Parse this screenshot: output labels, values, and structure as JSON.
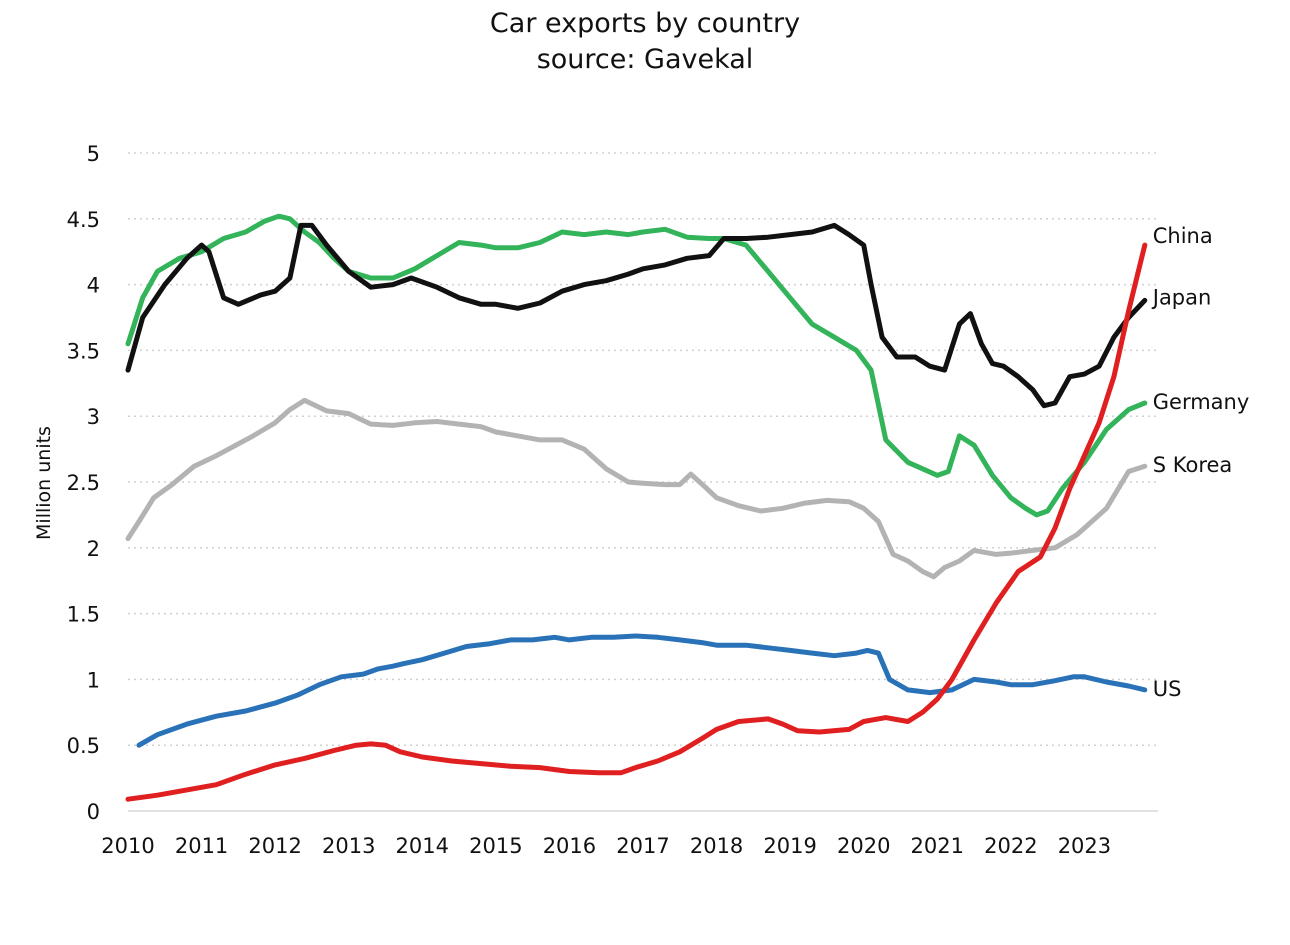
{
  "chart_data": {
    "type": "line",
    "title": "Car exports by country",
    "subtitle": "source: Gavekal",
    "xlabel": "",
    "ylabel": "Million units",
    "xlim": [
      2010,
      2024
    ],
    "ylim": [
      0,
      5
    ],
    "x_ticks": [
      "2010",
      "2011",
      "2012",
      "2013",
      "2014",
      "2015",
      "2016",
      "2017",
      "2018",
      "2019",
      "2020",
      "2021",
      "2022",
      "2023"
    ],
    "y_ticks": [
      "0",
      "0.5",
      "1",
      "1.5",
      "2",
      "2.5",
      "3",
      "3.5",
      "4",
      "4.5",
      "5"
    ],
    "y_tick_values": [
      0,
      0.5,
      1,
      1.5,
      2,
      2.5,
      3,
      3.5,
      4,
      4.5,
      5
    ],
    "grid": "horizontal dotted",
    "legend": "labels at line ends (right)",
    "series": [
      {
        "name": "China",
        "color": "#e02020",
        "x": [
          2010.0,
          2010.4,
          2010.8,
          2011.2,
          2011.6,
          2012.0,
          2012.4,
          2012.8,
          2013.1,
          2013.3,
          2013.5,
          2013.7,
          2014.0,
          2014.4,
          2014.8,
          2015.2,
          2015.6,
          2016.0,
          2016.4,
          2016.7,
          2016.9,
          2017.2,
          2017.5,
          2017.8,
          2018.0,
          2018.3,
          2018.7,
          2018.9,
          2019.1,
          2019.4,
          2019.8,
          2020.0,
          2020.3,
          2020.6,
          2020.8,
          2021.0,
          2021.2,
          2021.5,
          2021.8,
          2022.1,
          2022.4,
          2022.6,
          2022.8,
          2023.0,
          2023.2,
          2023.4,
          2023.6,
          2023.82
        ],
        "values": [
          0.09,
          0.12,
          0.16,
          0.2,
          0.28,
          0.35,
          0.4,
          0.46,
          0.5,
          0.51,
          0.5,
          0.45,
          0.41,
          0.38,
          0.36,
          0.34,
          0.33,
          0.3,
          0.29,
          0.29,
          0.33,
          0.38,
          0.45,
          0.55,
          0.62,
          0.68,
          0.7,
          0.66,
          0.61,
          0.6,
          0.62,
          0.68,
          0.71,
          0.68,
          0.75,
          0.85,
          1.0,
          1.3,
          1.58,
          1.82,
          1.93,
          2.15,
          2.45,
          2.7,
          2.95,
          3.3,
          3.8,
          4.3
        ]
      },
      {
        "name": "Japan",
        "color": "#111111",
        "x": [
          2010.0,
          2010.2,
          2010.5,
          2010.8,
          2011.0,
          2011.1,
          2011.3,
          2011.5,
          2011.8,
          2012.0,
          2012.2,
          2012.35,
          2012.5,
          2012.7,
          2013.0,
          2013.3,
          2013.6,
          2013.85,
          2014.2,
          2014.5,
          2014.8,
          2015.0,
          2015.3,
          2015.6,
          2015.9,
          2016.2,
          2016.5,
          2016.8,
          2017.0,
          2017.3,
          2017.6,
          2017.9,
          2018.1,
          2018.4,
          2018.7,
          2019.0,
          2019.3,
          2019.6,
          2019.8,
          2020.0,
          2020.1,
          2020.25,
          2020.45,
          2020.7,
          2020.9,
          2021.1,
          2021.3,
          2021.45,
          2021.6,
          2021.75,
          2021.9,
          2022.1,
          2022.3,
          2022.45,
          2022.6,
          2022.8,
          2023.0,
          2023.2,
          2023.4,
          2023.6,
          2023.82
        ],
        "values": [
          3.35,
          3.75,
          4.0,
          4.2,
          4.3,
          4.25,
          3.9,
          3.85,
          3.92,
          3.95,
          4.05,
          4.45,
          4.45,
          4.3,
          4.1,
          3.98,
          4.0,
          4.05,
          3.98,
          3.9,
          3.85,
          3.85,
          3.82,
          3.86,
          3.95,
          4.0,
          4.03,
          4.08,
          4.12,
          4.15,
          4.2,
          4.22,
          4.35,
          4.35,
          4.36,
          4.38,
          4.4,
          4.45,
          4.38,
          4.3,
          4.0,
          3.6,
          3.45,
          3.45,
          3.38,
          3.35,
          3.7,
          3.78,
          3.55,
          3.4,
          3.38,
          3.3,
          3.2,
          3.08,
          3.1,
          3.3,
          3.32,
          3.38,
          3.6,
          3.75,
          3.88
        ]
      },
      {
        "name": "Germany",
        "color": "#33b35a",
        "x": [
          2010.0,
          2010.2,
          2010.4,
          2010.7,
          2011.0,
          2011.3,
          2011.6,
          2011.85,
          2012.05,
          2012.2,
          2012.4,
          2012.6,
          2012.8,
          2013.0,
          2013.3,
          2013.6,
          2013.9,
          2014.2,
          2014.5,
          2014.8,
          2015.0,
          2015.3,
          2015.6,
          2015.9,
          2016.2,
          2016.5,
          2016.8,
          2017.0,
          2017.3,
          2017.6,
          2017.9,
          2018.1,
          2018.4,
          2018.7,
          2019.0,
          2019.3,
          2019.6,
          2019.9,
          2020.1,
          2020.3,
          2020.6,
          2020.8,
          2021.0,
          2021.15,
          2021.3,
          2021.5,
          2021.75,
          2022.0,
          2022.2,
          2022.35,
          2022.5,
          2022.7,
          2023.0,
          2023.3,
          2023.6,
          2023.82
        ],
        "values": [
          3.55,
          3.9,
          4.1,
          4.2,
          4.25,
          4.35,
          4.4,
          4.48,
          4.52,
          4.5,
          4.4,
          4.32,
          4.2,
          4.1,
          4.05,
          4.05,
          4.12,
          4.22,
          4.32,
          4.3,
          4.28,
          4.28,
          4.32,
          4.4,
          4.38,
          4.4,
          4.38,
          4.4,
          4.42,
          4.36,
          4.35,
          4.35,
          4.3,
          4.1,
          3.9,
          3.7,
          3.6,
          3.5,
          3.35,
          2.82,
          2.65,
          2.6,
          2.55,
          2.58,
          2.85,
          2.78,
          2.55,
          2.38,
          2.3,
          2.25,
          2.28,
          2.45,
          2.65,
          2.9,
          3.05,
          3.1
        ]
      },
      {
        "name": "S Korea",
        "color": "#b3b3b3",
        "x": [
          2010.0,
          2010.15,
          2010.35,
          2010.6,
          2010.9,
          2011.2,
          2011.4,
          2011.7,
          2012.0,
          2012.2,
          2012.4,
          2012.7,
          2013.0,
          2013.3,
          2013.6,
          2013.9,
          2014.2,
          2014.5,
          2014.8,
          2015.0,
          2015.3,
          2015.6,
          2015.9,
          2016.2,
          2016.5,
          2016.8,
          2017.0,
          2017.3,
          2017.5,
          2017.65,
          2017.85,
          2018.0,
          2018.3,
          2018.6,
          2018.9,
          2019.2,
          2019.5,
          2019.8,
          2020.0,
          2020.2,
          2020.4,
          2020.6,
          2020.8,
          2020.95,
          2021.1,
          2021.3,
          2021.5,
          2021.8,
          2022.0,
          2022.3,
          2022.6,
          2022.9,
          2023.1,
          2023.3,
          2023.6,
          2023.82
        ],
        "values": [
          2.07,
          2.2,
          2.38,
          2.48,
          2.62,
          2.7,
          2.76,
          2.85,
          2.95,
          3.05,
          3.12,
          3.04,
          3.02,
          2.94,
          2.93,
          2.95,
          2.96,
          2.94,
          2.92,
          2.88,
          2.85,
          2.82,
          2.82,
          2.75,
          2.6,
          2.5,
          2.49,
          2.48,
          2.48,
          2.56,
          2.46,
          2.38,
          2.32,
          2.28,
          2.3,
          2.34,
          2.36,
          2.35,
          2.3,
          2.2,
          1.95,
          1.9,
          1.82,
          1.78,
          1.85,
          1.9,
          1.98,
          1.95,
          1.96,
          1.98,
          2.0,
          2.1,
          2.2,
          2.3,
          2.58,
          2.62
        ]
      },
      {
        "name": "US",
        "color": "#2a72b8",
        "x": [
          2010.15,
          2010.4,
          2010.8,
          2011.2,
          2011.6,
          2012.0,
          2012.3,
          2012.6,
          2012.9,
          2013.2,
          2013.4,
          2013.6,
          2013.75,
          2014.0,
          2014.3,
          2014.6,
          2014.9,
          2015.2,
          2015.5,
          2015.8,
          2016.0,
          2016.3,
          2016.6,
          2016.9,
          2017.2,
          2017.5,
          2017.8,
          2018.0,
          2018.4,
          2018.7,
          2019.0,
          2019.3,
          2019.6,
          2019.9,
          2020.05,
          2020.2,
          2020.35,
          2020.6,
          2020.9,
          2021.2,
          2021.5,
          2021.8,
          2022.0,
          2022.3,
          2022.6,
          2022.85,
          2023.0,
          2023.3,
          2023.6,
          2023.82
        ],
        "values": [
          0.5,
          0.58,
          0.66,
          0.72,
          0.76,
          0.82,
          0.88,
          0.96,
          1.02,
          1.04,
          1.08,
          1.1,
          1.12,
          1.15,
          1.2,
          1.25,
          1.27,
          1.3,
          1.3,
          1.32,
          1.3,
          1.32,
          1.32,
          1.33,
          1.32,
          1.3,
          1.28,
          1.26,
          1.26,
          1.24,
          1.22,
          1.2,
          1.18,
          1.2,
          1.22,
          1.2,
          1.0,
          0.92,
          0.9,
          0.92,
          1.0,
          0.98,
          0.96,
          0.96,
          0.99,
          1.02,
          1.02,
          0.98,
          0.95,
          0.92
        ]
      }
    ]
  }
}
